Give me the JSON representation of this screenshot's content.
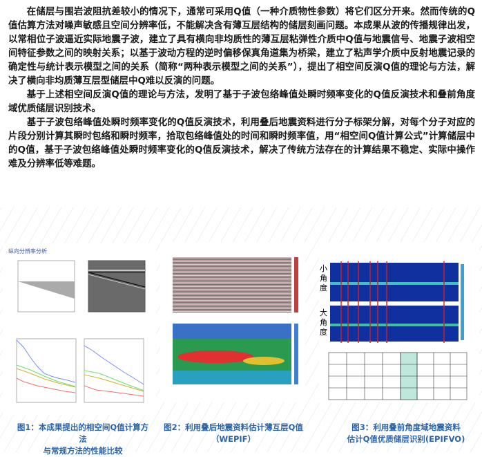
{
  "paragraphs": [
    "在储层与围岩波阻抗差较小的情况下，通常可采用Q值（一种介质物性参数）将它们区分开来。然而传统的Q值估算方法对噪声敏感且空间分辨率低，不能解决含有薄互层结构的储层刻画问题。本成果从波的传播规律出发，以常相位子波逼近实际地震子波，建立了具有横向非均质性的薄互层粘弹性介质中Q值与地震信号、地震子波相空间特征参数之间的映射关系；以基于波动方程的逆时偏移保真角道集为桥梁，建立了粘声学介质中反射地震记录的确定性与统计表示模型之间的关系（简称“两种表示模型之间的关系”），提出了相空间反演Q值的理论与方法，解决了横向非均质薄互层型储层中Q难以反演的问题。",
    "基于上述相空间反演Q值的理论与方法，发明了基于子波包络峰值处瞬时频率变化的Q值反演技术和叠前角度域优质储层识别技术。",
    "基于子波包络峰值处瞬时频率变化的Q值反演技术，利用叠后地震资料进行分子标架分解，对每个分子对应的片段分别计算其瞬时包络和瞬时频率，拾取包络峰值处的时间和瞬时频率值，用“相空间Q值计算公式”计算储层中的Q值，基于子波包络峰值处瞬时频率变化的Q值反演技术，解决了传统方法存在的计算结果不稳定、实际中操作难及分辨率低等难题。"
  ],
  "figures": [
    {
      "inner_title": "纵向分辨率分析",
      "caption_line1": "图1：本成果提出的相空间Q值计算方法",
      "caption_line2": "与常规方法的性能比较"
    },
    {
      "caption_line1": "图2：利用叠后地震资料估计薄互层Q值（WEPIF）"
    },
    {
      "label_small": "小角度",
      "label_large": "大角度",
      "caption_line1": "图3：利用叠前角度域地震资料",
      "caption_line2": "估计Q值优质储层识别(EPIFVO)"
    }
  ],
  "colors": {
    "caption": "#2b63a8",
    "text": "#1a1a1a"
  }
}
